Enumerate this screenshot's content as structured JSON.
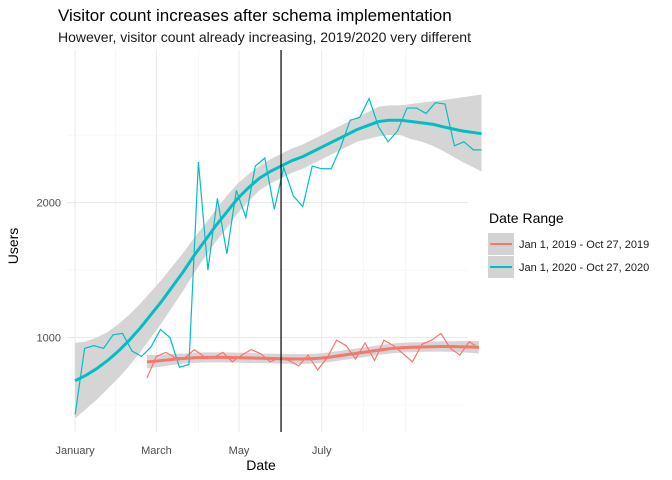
{
  "chart_data": {
    "type": "line",
    "title": "Visitor count increases after schema implementation",
    "subtitle": "However, visitor count already increasing, 2019/2020 very different",
    "xlabel": "Date",
    "ylabel": "Users",
    "x_tick_labels": [
      "January",
      "March",
      "May",
      "July"
    ],
    "y_tick_labels": [
      "1000",
      "2000"
    ],
    "x_range_days": [
      -6,
      290
    ],
    "ylim": [
      300,
      3130
    ],
    "grid": true,
    "legend_title": "Date Range",
    "legend_position": "right",
    "vertical_line_date": "2020-06-01",
    "series": [
      {
        "name": "Jan 1, 2019 - Oct 27, 2019",
        "color": "#F8766D",
        "x": [
          "2020-02-23",
          "2020-03-01",
          "2020-03-08",
          "2020-03-15",
          "2020-03-22",
          "2020-03-29",
          "2020-04-05",
          "2020-04-12",
          "2020-04-19",
          "2020-04-26",
          "2020-05-03",
          "2020-05-10",
          "2020-05-17",
          "2020-05-24",
          "2020-05-31",
          "2020-06-07",
          "2020-06-14",
          "2020-06-21",
          "2020-06-28",
          "2020-07-05",
          "2020-07-12",
          "2020-07-19",
          "2020-07-26",
          "2020-08-02",
          "2020-08-09",
          "2020-08-16",
          "2020-08-23",
          "2020-08-30",
          "2020-09-06",
          "2020-09-13",
          "2020-09-20",
          "2020-09-27",
          "2020-10-04",
          "2020-10-11",
          "2020-10-18",
          "2020-10-25"
        ],
        "y": [
          700,
          860,
          890,
          850,
          850,
          910,
          860,
          850,
          890,
          820,
          870,
          910,
          880,
          820,
          850,
          830,
          790,
          870,
          760,
          850,
          980,
          940,
          840,
          960,
          830,
          980,
          940,
          880,
          820,
          950,
          980,
          1030,
          920,
          870,
          970,
          920
        ],
        "smooth": [
          820,
          825,
          833,
          840,
          845,
          850,
          852,
          853,
          853,
          852,
          850,
          848,
          846,
          845,
          843,
          842,
          841,
          842,
          845,
          852,
          862,
          872,
          882,
          892,
          902,
          912,
          920,
          925,
          928,
          930,
          932,
          933,
          933,
          932,
          930,
          928
        ],
        "smooth_ci": [
          [
            770,
            870
          ],
          [
            780,
            870
          ],
          [
            790,
            875
          ],
          [
            800,
            880
          ],
          [
            808,
            882
          ],
          [
            812,
            888
          ],
          [
            815,
            890
          ],
          [
            816,
            890
          ],
          [
            816,
            890
          ],
          [
            815,
            889
          ],
          [
            813,
            887
          ],
          [
            811,
            885
          ],
          [
            810,
            882
          ],
          [
            809,
            881
          ],
          [
            807,
            879
          ],
          [
            806,
            878
          ],
          [
            805,
            877
          ],
          [
            806,
            878
          ],
          [
            809,
            881
          ],
          [
            816,
            888
          ],
          [
            826,
            898
          ],
          [
            836,
            908
          ],
          [
            846,
            918
          ],
          [
            856,
            928
          ],
          [
            866,
            938
          ],
          [
            876,
            948
          ],
          [
            884,
            956
          ],
          [
            889,
            961
          ],
          [
            892,
            964
          ],
          [
            894,
            966
          ],
          [
            895,
            969
          ],
          [
            895,
            971
          ],
          [
            894,
            972
          ],
          [
            891,
            973
          ],
          [
            887,
            973
          ],
          [
            882,
            974
          ]
        ]
      },
      {
        "name": "Jan 1, 2020 - Oct 27, 2020",
        "color": "#00BFC4",
        "x": [
          "2020-01-01",
          "2020-01-08",
          "2020-01-15",
          "2020-01-22",
          "2020-01-29",
          "2020-02-05",
          "2020-02-12",
          "2020-02-19",
          "2020-02-26",
          "2020-03-04",
          "2020-03-11",
          "2020-03-18",
          "2020-03-25",
          "2020-04-01",
          "2020-04-08",
          "2020-04-15",
          "2020-04-22",
          "2020-04-29",
          "2020-05-06",
          "2020-05-13",
          "2020-05-20",
          "2020-05-27",
          "2020-06-03",
          "2020-06-10",
          "2020-06-17",
          "2020-06-24",
          "2020-07-01",
          "2020-07-08",
          "2020-07-15",
          "2020-07-22",
          "2020-07-29",
          "2020-08-05",
          "2020-08-12",
          "2020-08-19",
          "2020-08-26",
          "2020-09-02",
          "2020-09-09",
          "2020-09-16",
          "2020-09-23",
          "2020-09-30",
          "2020-10-07",
          "2020-10-14",
          "2020-10-21",
          "2020-10-27"
        ],
        "y": [
          430,
          920,
          940,
          920,
          1020,
          1030,
          900,
          860,
          930,
          1060,
          1000,
          780,
          800,
          2300,
          1500,
          2030,
          1620,
          2090,
          1890,
          2270,
          2330,
          1950,
          2260,
          2050,
          1970,
          2270,
          2250,
          2250,
          2410,
          2610,
          2630,
          2770,
          2560,
          2450,
          2530,
          2700,
          2700,
          2660,
          2740,
          2730,
          2420,
          2450,
          2390,
          2390
        ],
        "smooth": [
          680,
          720,
          770,
          830,
          900,
          980,
          1070,
          1170,
          1270,
          1380,
          1490,
          1610,
          1720,
          1830,
          1930,
          2030,
          2110,
          2180,
          2230,
          2270,
          2310,
          2340,
          2380,
          2420,
          2460,
          2500,
          2540,
          2570,
          2600,
          2610,
          2610,
          2600,
          2590,
          2580,
          2560,
          2530,
          2510
        ],
        "smooth_x": [
          "2020-01-01",
          "2020-01-09",
          "2020-01-17",
          "2020-01-25",
          "2020-02-02",
          "2020-02-10",
          "2020-02-18",
          "2020-02-26",
          "2020-03-05",
          "2020-03-13",
          "2020-03-21",
          "2020-03-29",
          "2020-04-06",
          "2020-04-14",
          "2020-04-22",
          "2020-04-30",
          "2020-05-08",
          "2020-05-16",
          "2020-05-24",
          "2020-06-01",
          "2020-06-09",
          "2020-06-17",
          "2020-06-25",
          "2020-07-03",
          "2020-07-11",
          "2020-07-19",
          "2020-07-27",
          "2020-08-04",
          "2020-08-12",
          "2020-08-20",
          "2020-08-28",
          "2020-09-05",
          "2020-09-13",
          "2020-09-21",
          "2020-09-29",
          "2020-10-13",
          "2020-10-27"
        ],
        "smooth_ci": [
          [
            400,
            960
          ],
          [
            470,
            970
          ],
          [
            540,
            1000
          ],
          [
            620,
            1040
          ],
          [
            700,
            1100
          ],
          [
            790,
            1170
          ],
          [
            890,
            1250
          ],
          [
            1000,
            1340
          ],
          [
            1110,
            1430
          ],
          [
            1230,
            1530
          ],
          [
            1350,
            1630
          ],
          [
            1480,
            1740
          ],
          [
            1600,
            1840
          ],
          [
            1710,
            1950
          ],
          [
            1810,
            2050
          ],
          [
            1920,
            2140
          ],
          [
            2010,
            2210
          ],
          [
            2090,
            2270
          ],
          [
            2140,
            2320
          ],
          [
            2180,
            2360
          ],
          [
            2220,
            2400
          ],
          [
            2250,
            2430
          ],
          [
            2290,
            2470
          ],
          [
            2330,
            2510
          ],
          [
            2370,
            2550
          ],
          [
            2410,
            2590
          ],
          [
            2450,
            2630
          ],
          [
            2470,
            2670
          ],
          [
            2490,
            2710
          ],
          [
            2500,
            2720
          ],
          [
            2500,
            2720
          ],
          [
            2470,
            2730
          ],
          [
            2450,
            2740
          ],
          [
            2420,
            2750
          ],
          [
            2380,
            2760
          ],
          [
            2300,
            2780
          ],
          [
            2230,
            2800
          ]
        ]
      }
    ]
  }
}
